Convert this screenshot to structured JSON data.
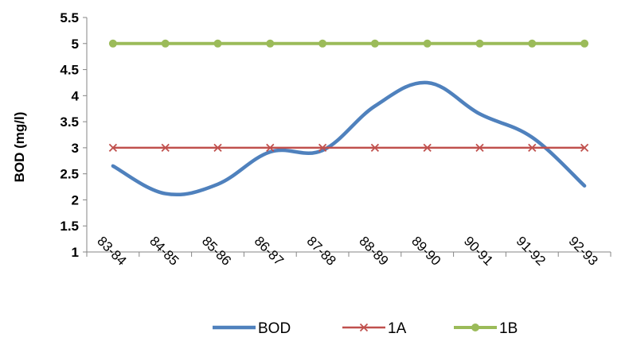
{
  "chart_data": {
    "type": "line",
    "title": "",
    "xlabel": "",
    "ylabel": "BOD (mg/l)",
    "categories": [
      "83-84",
      "84-85",
      "85-86",
      "86-87",
      "87-88",
      "88-89",
      "89-90",
      "90-91",
      "91-92",
      "92-93"
    ],
    "ylim": [
      1,
      5.5
    ],
    "yticks": [
      "1",
      "1.5",
      "2",
      "2.5",
      "3",
      "3.5",
      "4",
      "4.5",
      "5",
      "5.5"
    ],
    "grid": false,
    "legend_position": "bottom",
    "series": [
      {
        "name": "BOD",
        "color": "#4F81BD",
        "marker": "none",
        "smooth": true,
        "values": [
          2.65,
          2.12,
          2.3,
          2.92,
          2.95,
          3.8,
          4.25,
          3.65,
          3.2,
          2.27
        ]
      },
      {
        "name": "1A",
        "color": "#C0504D",
        "marker": "x",
        "values": [
          3,
          3,
          3,
          3,
          3,
          3,
          3,
          3,
          3,
          3
        ]
      },
      {
        "name": "1B",
        "color": "#9BBB59",
        "marker": "circle",
        "values": [
          5,
          5,
          5,
          5,
          5,
          5,
          5,
          5,
          5,
          5
        ]
      }
    ]
  }
}
